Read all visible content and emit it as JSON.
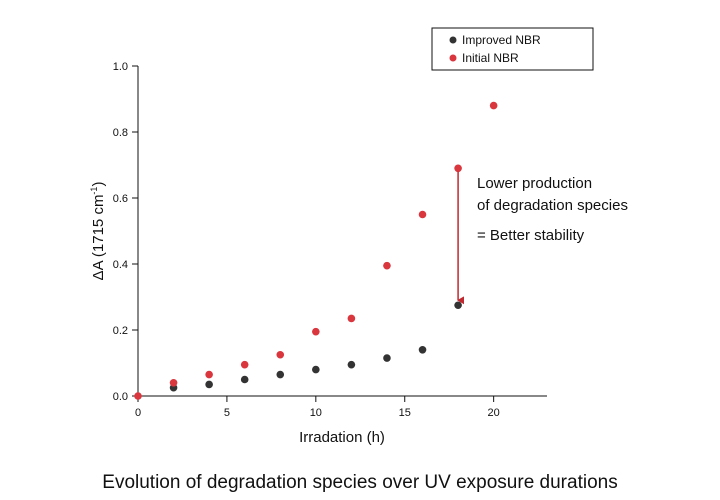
{
  "chart_data": {
    "type": "scatter",
    "xlabel": "Irradation (h)",
    "ylabel": "ΔA (1715 cm",
    "ylabel_sup": "-1",
    "ylabel_close": ")",
    "xlim": [
      0,
      23
    ],
    "ylim": [
      0,
      1.0
    ],
    "xticks": [
      0,
      5,
      10,
      15,
      20
    ],
    "yticks": [
      0.0,
      0.2,
      0.4,
      0.6,
      0.8,
      1.0
    ],
    "ytick_labels": [
      "0.0",
      "0.2",
      "0.4",
      "0.6",
      "0.8",
      "1.0"
    ],
    "grid": false,
    "legend_position": "top-right",
    "series": [
      {
        "name": "Improved NBR",
        "color": "#333333",
        "points": [
          [
            2,
            0.025
          ],
          [
            4,
            0.035
          ],
          [
            6,
            0.05
          ],
          [
            8,
            0.065
          ],
          [
            10,
            0.08
          ],
          [
            12,
            0.095
          ],
          [
            14,
            0.115
          ],
          [
            16,
            0.14
          ],
          [
            18,
            0.275
          ]
        ]
      },
      {
        "name": "Initial NBR",
        "color": "#d9363e",
        "points": [
          [
            0,
            0.0
          ],
          [
            2,
            0.04
          ],
          [
            4,
            0.065
          ],
          [
            6,
            0.095
          ],
          [
            8,
            0.125
          ],
          [
            10,
            0.195
          ],
          [
            12,
            0.235
          ],
          [
            14,
            0.395
          ],
          [
            16,
            0.55
          ],
          [
            18,
            0.69
          ],
          [
            20,
            0.88
          ]
        ]
      }
    ],
    "annotations": {
      "line1": "Lower production",
      "line2": "of degradation species",
      "line3": "= Better stability",
      "arrow_from": [
        18,
        0.68
      ],
      "arrow_to": [
        18,
        0.29
      ],
      "arrow_color": "#c0282f"
    }
  },
  "caption": "Evolution of degradation species over UV exposure durations"
}
